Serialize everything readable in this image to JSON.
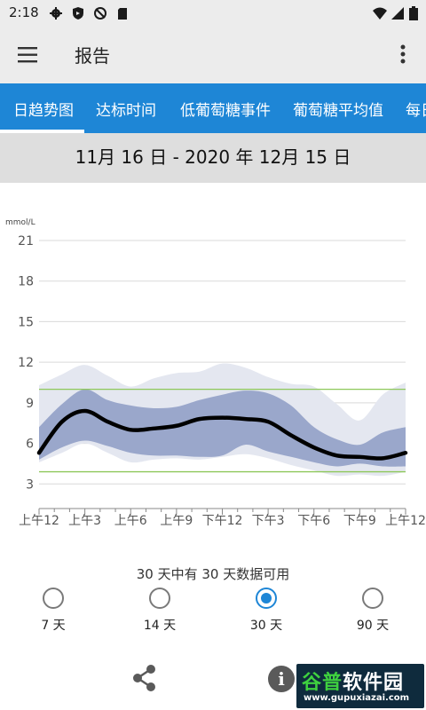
{
  "status_bar": {
    "time": "2:18",
    "left_icons": [
      "gear-icon",
      "shield-icon",
      "no-sync-icon",
      "sd-card-icon"
    ],
    "right_icons": [
      "wifi-icon",
      "signal-icon",
      "battery-icon"
    ]
  },
  "app_bar": {
    "title": "报告"
  },
  "tabs": [
    {
      "label": "日趋势图",
      "selected": true
    },
    {
      "label": "达标时间",
      "selected": false
    },
    {
      "label": "低葡萄糖事件",
      "selected": false
    },
    {
      "label": "葡萄糖平均值",
      "selected": false
    },
    {
      "label": "每日",
      "selected": false
    }
  ],
  "date_range": "11月 16 日 - 2020 年 12月 15 日",
  "chart_data": {
    "type": "area",
    "ylabel": "mmol/L",
    "ylim": [
      0,
      21
    ],
    "y_ticks": [
      3,
      6,
      9,
      12,
      15,
      18,
      21
    ],
    "x_ticks": [
      "上午12",
      "上午3",
      "上午6",
      "上午9",
      "下午12",
      "下午3",
      "下午6",
      "下午9",
      "上午12"
    ],
    "x_hours": [
      0,
      3,
      6,
      9,
      12,
      15,
      18,
      21,
      24
    ],
    "target_range": [
      3.9,
      10.0
    ],
    "grid": true,
    "series": [
      {
        "x": [
          0,
          1.5,
          3,
          4.5,
          6,
          7.5,
          9,
          10.5,
          12,
          13.5,
          15,
          16.5,
          18,
          19.5,
          21,
          22.5,
          24
        ],
        "values": [
          10.3,
          11.1,
          11.8,
          11.0,
          10.2,
          10.8,
          11.2,
          11.3,
          11.9,
          11.6,
          10.9,
          10.4,
          10.2,
          8.9,
          7.7,
          9.6,
          10.5
        ],
        "values_low": [
          4.6,
          5.3,
          6.0,
          5.3,
          4.6,
          4.8,
          4.9,
          4.8,
          5.0,
          5.2,
          4.9,
          4.4,
          4.0,
          3.6,
          3.7,
          3.6,
          3.9
        ]
      },
      {
        "x": [
          0,
          1.5,
          3,
          4.5,
          6,
          7.5,
          9,
          10.5,
          12,
          13.5,
          15,
          16.5,
          18,
          19.5,
          21,
          22.5,
          24
        ],
        "values": [
          7.2,
          8.9,
          10.0,
          9.2,
          8.8,
          8.6,
          8.7,
          9.2,
          9.6,
          9.9,
          9.7,
          8.8,
          7.2,
          6.3,
          5.9,
          6.8,
          7.2
        ],
        "values_low": [
          4.8,
          5.7,
          6.2,
          5.8,
          5.3,
          5.1,
          5.1,
          5.0,
          5.1,
          5.9,
          5.4,
          5.0,
          4.6,
          4.3,
          4.5,
          4.3,
          4.3
        ]
      },
      {
        "x": [
          0,
          1.5,
          3,
          4.5,
          6,
          7.5,
          9,
          10.5,
          12,
          13.5,
          15,
          16.5,
          18,
          19.5,
          21,
          22.5,
          24
        ],
        "values": [
          5.3,
          7.6,
          8.4,
          7.6,
          7.0,
          7.1,
          7.3,
          7.8,
          7.9,
          7.8,
          7.6,
          6.6,
          5.7,
          5.1,
          5.0,
          4.9,
          5.3
        ]
      }
    ],
    "colors": {
      "outer_band": "#e4e7f0",
      "inner_band": "#9aa7cb",
      "median": "#000000",
      "target": "#8ec85a",
      "grid": "#d9d9d9"
    }
  },
  "availability": "30 天中有 30 天数据可用",
  "periods": [
    {
      "label": "7 天",
      "selected": false
    },
    {
      "label": "14 天",
      "selected": false
    },
    {
      "label": "30 天",
      "selected": true
    },
    {
      "label": "90 天",
      "selected": false
    }
  ],
  "bottom_bar": {
    "share_icon": "share-icon",
    "info_icon": "info-icon",
    "info_text": "i"
  },
  "watermark": {
    "main_a": "谷普",
    "main_b": "软件园",
    "sub": "www.gupuxiazai.com"
  }
}
